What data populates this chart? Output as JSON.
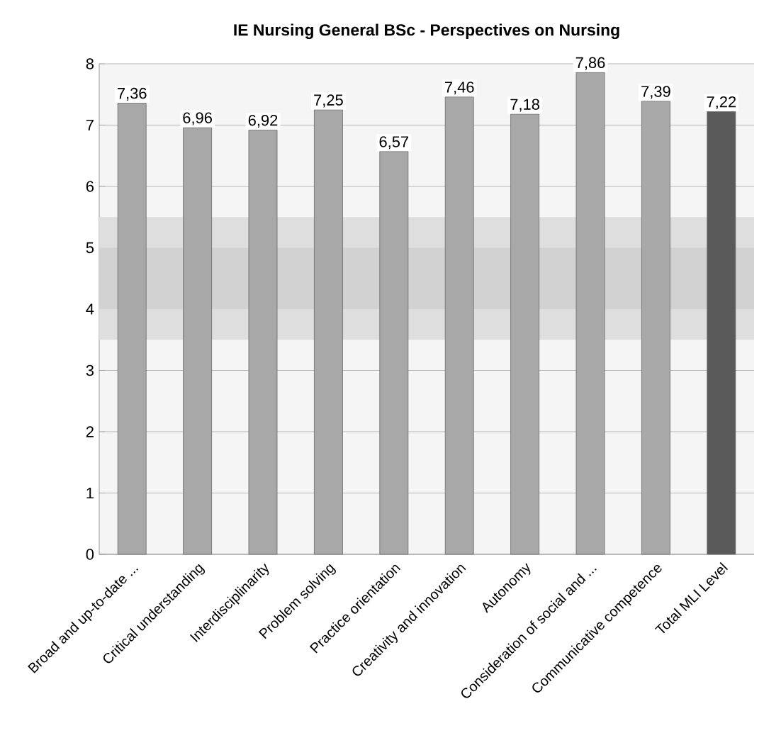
{
  "chart_data": {
    "type": "bar",
    "title": "IE Nursing General BSc - Perspectives on Nursing",
    "categories": [
      "Broad and up-to-date ...",
      "Critical understanding",
      "Interdisciplinarity",
      "Problem solving",
      "Practice orientation",
      "Creativity and innovation",
      "Autonomy",
      "Consideration of social and ...",
      "Communicative competence",
      "Total MLI Level"
    ],
    "values": [
      7.36,
      6.96,
      6.92,
      7.25,
      6.57,
      7.46,
      7.18,
      7.86,
      7.39,
      7.22
    ],
    "value_labels": [
      "7,36",
      "6,96",
      "6,92",
      "7,25",
      "6,57",
      "7,46",
      "7,18",
      "7,86",
      "7,39",
      "7,22"
    ],
    "colors": [
      "#a8a8a8",
      "#a8a8a8",
      "#a8a8a8",
      "#a8a8a8",
      "#a8a8a8",
      "#a8a8a8",
      "#a8a8a8",
      "#a8a8a8",
      "#a8a8a8",
      "#5a5a5a"
    ],
    "ylim": [
      0,
      8
    ],
    "yticks": [
      0,
      1,
      2,
      3,
      4,
      5,
      6,
      7,
      8
    ],
    "grid": "y",
    "bands": [
      {
        "axis": "y",
        "from": 3.5,
        "to": 5.5,
        "color": "#dedede"
      },
      {
        "axis": "y",
        "from": 4,
        "to": 5,
        "color": "#d2d2d2"
      }
    ]
  }
}
